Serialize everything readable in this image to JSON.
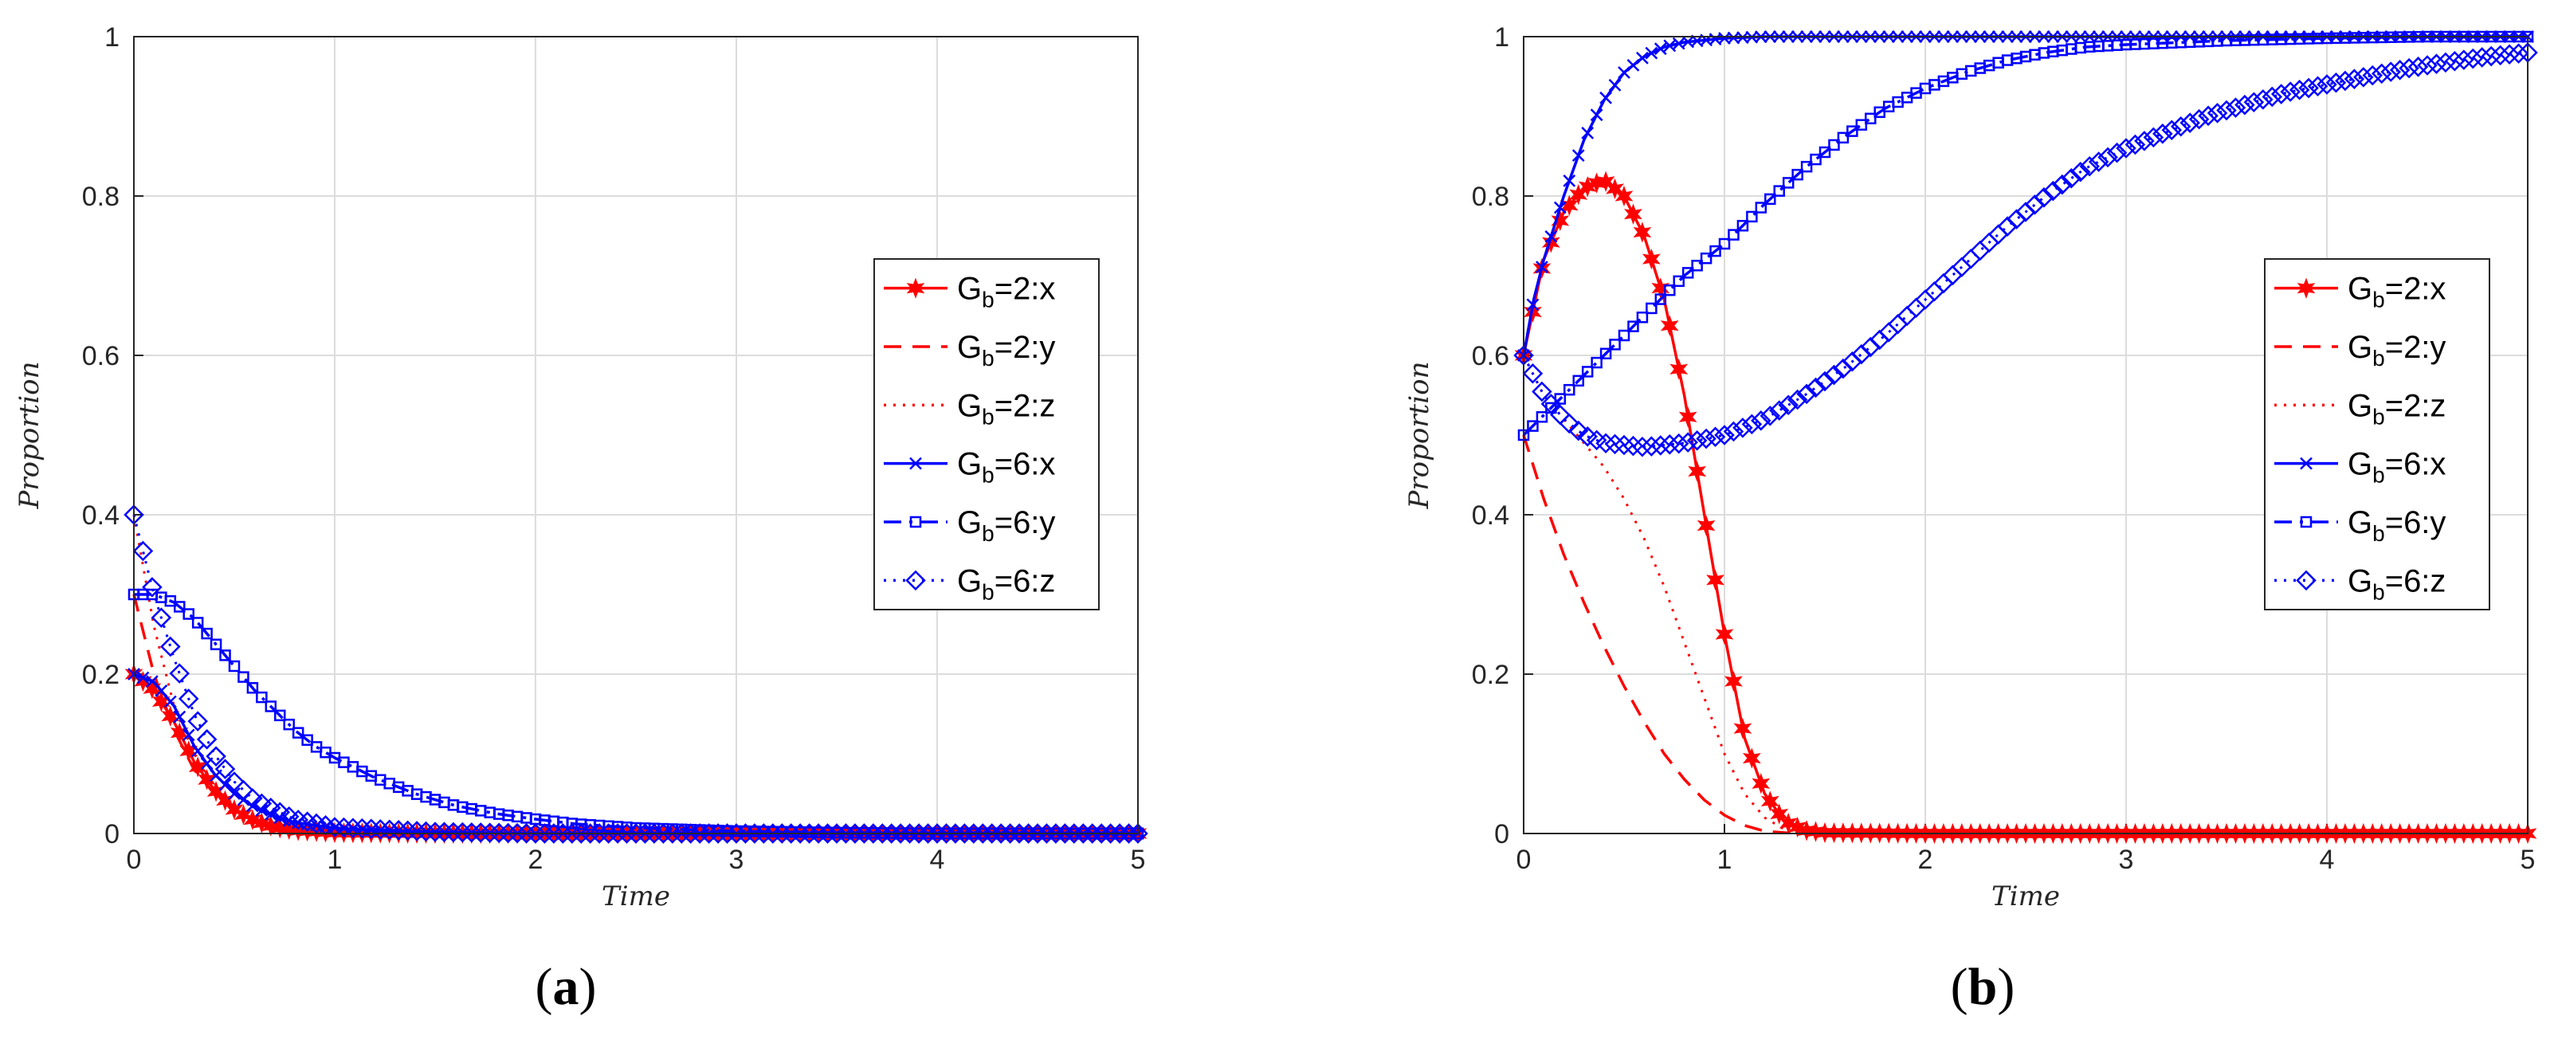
{
  "panels": [
    {
      "caption_letter": "a",
      "chart_data": {
        "type": "line",
        "xlabel": "Time",
        "ylabel": "Proportion",
        "xlim": [
          0,
          5
        ],
        "ylim": [
          0,
          1
        ],
        "xticks": [
          "0",
          "1",
          "2",
          "3",
          "4",
          "5"
        ],
        "yticks": [
          "0",
          "0.2",
          "0.4",
          "0.6",
          "0.8",
          "1"
        ],
        "grid": true,
        "legend_position": "right",
        "series": [
          {
            "legend_base": "G",
            "legend_sub": "b",
            "legend_rest": "=2:x",
            "color": "#ff0000",
            "dash": "solid",
            "marker": "star",
            "x": [
              0,
              0.1,
              0.2,
              0.3,
              0.4,
              0.5,
              0.6,
              0.7,
              0.8,
              1.0,
              1.5,
              2,
              3,
              4,
              5
            ],
            "y": [
              0.2,
              0.18,
              0.14,
              0.09,
              0.055,
              0.03,
              0.016,
              0.008,
              0.004,
              0.001,
              0,
              0,
              0,
              0,
              0
            ]
          },
          {
            "legend_base": "G",
            "legend_sub": "b",
            "legend_rest": "=2:y",
            "color": "#ff0000",
            "dash": "dashed",
            "marker": "none",
            "x": [
              0,
              0.05,
              0.1,
              0.2,
              0.3,
              0.4,
              0.5,
              0.6,
              0.8,
              1.0,
              1.5,
              2,
              3,
              5
            ],
            "y": [
              0.3,
              0.25,
              0.2,
              0.13,
              0.08,
              0.05,
              0.03,
              0.018,
              0.006,
              0.002,
              0,
              0,
              0,
              0
            ]
          },
          {
            "legend_base": "G",
            "legend_sub": "b",
            "legend_rest": "=2:z",
            "color": "#ff0000",
            "dash": "dotted",
            "marker": "none",
            "x": [
              0,
              0.1,
              0.2,
              0.3,
              0.4,
              0.5,
              0.6,
              0.8,
              1.0,
              1.5,
              2,
              3,
              5
            ],
            "y": [
              0.4,
              0.26,
              0.16,
              0.1,
              0.06,
              0.035,
              0.02,
              0.007,
              0.002,
              0,
              0,
              0,
              0
            ]
          },
          {
            "legend_base": "G",
            "legend_sub": "b",
            "legend_rest": "=6:x",
            "color": "#0000ff",
            "dash": "solid",
            "marker": "x",
            "x": [
              0,
              0.1,
              0.2,
              0.3,
              0.4,
              0.5,
              0.6,
              0.7,
              0.8,
              1.0,
              1.2,
              1.5,
              2,
              3,
              4,
              5
            ],
            "y": [
              0.2,
              0.19,
              0.16,
              0.11,
              0.075,
              0.05,
              0.033,
              0.022,
              0.014,
              0.007,
              0.004,
              0.002,
              0,
              0,
              0,
              0
            ]
          },
          {
            "legend_base": "G",
            "legend_sub": "b",
            "legend_rest": "=6:y",
            "color": "#0000ff",
            "dash": "dashdot",
            "marker": "square",
            "x": [
              0,
              0.1,
              0.2,
              0.3,
              0.4,
              0.5,
              0.6,
              0.7,
              0.8,
              0.9,
              1.0,
              1.2,
              1.4,
              1.6,
              1.8,
              2.0,
              2.2,
              2.5,
              3.0,
              3.5,
              4.0,
              5.0
            ],
            "y": [
              0.3,
              0.3,
              0.29,
              0.27,
              0.24,
              0.21,
              0.18,
              0.155,
              0.13,
              0.11,
              0.095,
              0.07,
              0.05,
              0.035,
              0.025,
              0.018,
              0.012,
              0.007,
              0.003,
              0.001,
              0,
              0
            ]
          },
          {
            "legend_base": "G",
            "legend_sub": "b",
            "legend_rest": "=6:z",
            "color": "#0000ff",
            "dash": "dotted",
            "marker": "diamond",
            "x": [
              0,
              0.05,
              0.1,
              0.15,
              0.2,
              0.3,
              0.4,
              0.5,
              0.6,
              0.8,
              1.0,
              1.5,
              2,
              3,
              4,
              5
            ],
            "y": [
              0.4,
              0.35,
              0.3,
              0.26,
              0.22,
              0.15,
              0.1,
              0.065,
              0.042,
              0.018,
              0.008,
              0.002,
              0,
              0,
              0,
              0
            ]
          }
        ]
      }
    },
    {
      "caption_letter": "b",
      "chart_data": {
        "type": "line",
        "xlabel": "Time",
        "ylabel": "Proportion",
        "xlim": [
          0,
          5
        ],
        "ylim": [
          0,
          1
        ],
        "xticks": [
          "0",
          "1",
          "2",
          "3",
          "4",
          "5"
        ],
        "yticks": [
          "0",
          "0.2",
          "0.4",
          "0.6",
          "0.8",
          "1"
        ],
        "grid": true,
        "legend_position": "right",
        "series": [
          {
            "legend_base": "G",
            "legend_sub": "b",
            "legend_rest": "=2:x",
            "color": "#ff0000",
            "dash": "solid",
            "marker": "star",
            "x": [
              0,
              0.05,
              0.1,
              0.2,
              0.3,
              0.4,
              0.5,
              0.6,
              0.7,
              0.8,
              0.9,
              1.0,
              1.1,
              1.2,
              1.3,
              1.4,
              1.5,
              2,
              3,
              4,
              5
            ],
            "y": [
              0.6,
              0.66,
              0.72,
              0.78,
              0.81,
              0.82,
              0.8,
              0.75,
              0.67,
              0.55,
              0.4,
              0.25,
              0.12,
              0.05,
              0.015,
              0.004,
              0.001,
              0,
              0,
              0,
              0
            ]
          },
          {
            "legend_base": "G",
            "legend_sub": "b",
            "legend_rest": "=2:y",
            "color": "#ff0000",
            "dash": "dashed",
            "marker": "none",
            "x": [
              0,
              0.1,
              0.2,
              0.3,
              0.4,
              0.5,
              0.6,
              0.7,
              0.8,
              0.9,
              1.0,
              1.1,
              1.2,
              1.3,
              1.4
            ],
            "y": [
              0.5,
              0.42,
              0.35,
              0.29,
              0.235,
              0.185,
              0.14,
              0.1,
              0.068,
              0.042,
              0.023,
              0.01,
              0.003,
              0.001,
              0
            ]
          },
          {
            "legend_base": "G",
            "legend_sub": "b",
            "legend_rest": "=2:z",
            "color": "#ff0000",
            "dash": "dotted",
            "marker": "none",
            "x": [
              0,
              0.1,
              0.2,
              0.3,
              0.4,
              0.5,
              0.6,
              0.7,
              0.8,
              0.9,
              1.0,
              1.1,
              1.2,
              1.3,
              1.4
            ],
            "y": [
              0.6,
              0.55,
              0.52,
              0.49,
              0.46,
              0.42,
              0.37,
              0.31,
              0.24,
              0.17,
              0.1,
              0.05,
              0.02,
              0.005,
              0
            ]
          },
          {
            "legend_base": "G",
            "legend_sub": "b",
            "legend_rest": "=6:x",
            "color": "#0000ff",
            "dash": "solid",
            "marker": "x",
            "x": [
              0,
              0.05,
              0.1,
              0.2,
              0.3,
              0.4,
              0.5,
              0.6,
              0.7,
              0.8,
              1.0,
              1.2,
              1.5,
              2,
              3,
              4,
              5
            ],
            "y": [
              0.6,
              0.67,
              0.72,
              0.8,
              0.87,
              0.92,
              0.955,
              0.975,
              0.987,
              0.993,
              0.998,
              1,
              1,
              1,
              1,
              1,
              1
            ]
          },
          {
            "legend_base": "G",
            "legend_sub": "b",
            "legend_rest": "=6:y",
            "color": "#0000ff",
            "dash": "dashdot",
            "marker": "square",
            "x": [
              0,
              0.2,
              0.4,
              0.6,
              0.8,
              1.0,
              1.2,
              1.4,
              1.6,
              1.8,
              2.0,
              2.2,
              2.4,
              2.6,
              2.8,
              3.0,
              3.5,
              4.0,
              4.5,
              5.0
            ],
            "y": [
              0.5,
              0.55,
              0.6,
              0.65,
              0.7,
              0.74,
              0.79,
              0.835,
              0.875,
              0.91,
              0.935,
              0.955,
              0.97,
              0.98,
              0.987,
              0.99,
              0.995,
              0.998,
              1,
              1
            ]
          },
          {
            "legend_base": "G",
            "legend_sub": "b",
            "legend_rest": "=6:z",
            "color": "#0000ff",
            "dash": "dotted",
            "marker": "diamond",
            "x": [
              0,
              0.1,
              0.2,
              0.3,
              0.4,
              0.6,
              0.8,
              1.0,
              1.2,
              1.4,
              1.6,
              1.8,
              2.0,
              2.2,
              2.4,
              2.6,
              2.8,
              3.0,
              3.2,
              3.4,
              3.6,
              3.8,
              4.0,
              4.2,
              4.4,
              4.6,
              4.8,
              5.0
            ],
            "y": [
              0.6,
              0.55,
              0.52,
              0.5,
              0.49,
              0.485,
              0.49,
              0.5,
              0.52,
              0.55,
              0.585,
              0.625,
              0.67,
              0.715,
              0.76,
              0.8,
              0.835,
              0.86,
              0.88,
              0.9,
              0.915,
              0.93,
              0.94,
              0.95,
              0.96,
              0.968,
              0.975,
              0.98
            ]
          }
        ]
      }
    }
  ]
}
